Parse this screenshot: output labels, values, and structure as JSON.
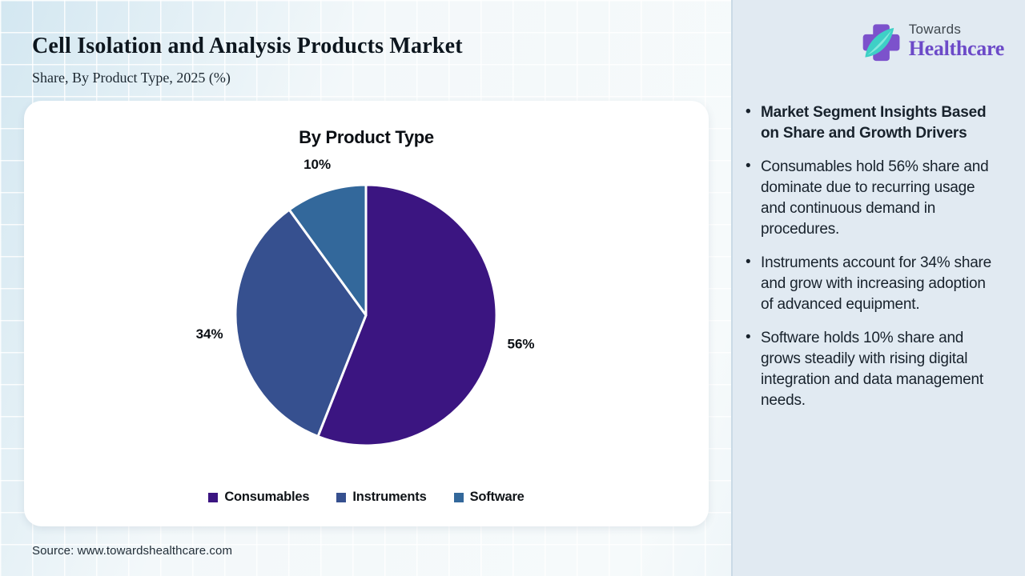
{
  "header": {
    "title": "Cell Isolation and Analysis Products Market",
    "subtitle": "Share, By Product Type, 2025 (%)"
  },
  "logo": {
    "top_text": "Towards",
    "bottom_text": "Healthcare",
    "cross_color": "#7C52CC",
    "leaf_color": "#3ED0C6"
  },
  "chart_data": {
    "type": "pie",
    "title": "By Product Type",
    "categories": [
      "Consumables",
      "Instruments",
      "Software"
    ],
    "values": [
      56,
      34,
      10
    ],
    "unit": "%",
    "colors": [
      "#3B1581",
      "#36508F",
      "#33689B"
    ],
    "start_angle_deg": 0,
    "direction": "clockwise",
    "slice_border_color": "#ffffff",
    "legend_position": "bottom"
  },
  "insights": {
    "items": [
      {
        "text": "Market Segment Insights Based on Share and Growth Drivers",
        "bold": true
      },
      {
        "text": "Consumables hold 56% share and dominate due to recurring usage and continuous demand in procedures.",
        "bold": false
      },
      {
        "text": "Instruments account for 34% share and grow with increasing adoption of advanced equipment.",
        "bold": false
      },
      {
        "text": "Software holds 10% share and grows steadily with rising digital integration and data management needs.",
        "bold": false
      }
    ]
  },
  "source": {
    "text": "Source: www.towardshealthcare.com"
  }
}
